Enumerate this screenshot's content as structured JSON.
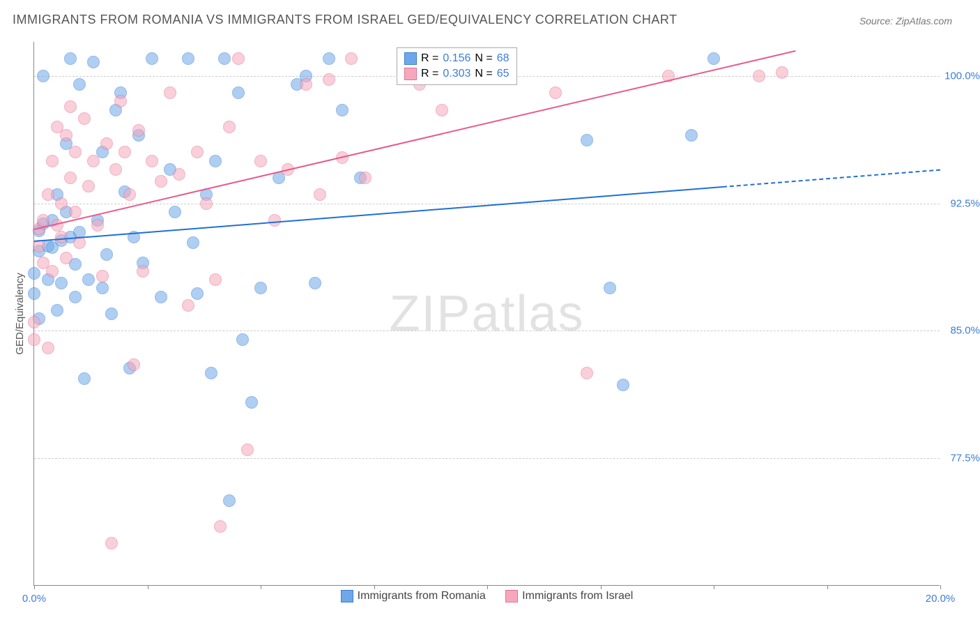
{
  "title": "IMMIGRANTS FROM ROMANIA VS IMMIGRANTS FROM ISRAEL GED/EQUIVALENCY CORRELATION CHART",
  "source": "Source: ZipAtlas.com",
  "ylabel": "GED/Equivalency",
  "watermark_bold": "ZIP",
  "watermark_light": "atlas",
  "chart": {
    "type": "scatter-correlation",
    "xlim": [
      0.0,
      20.0
    ],
    "ylim": [
      70.0,
      102.0
    ],
    "ytick_values": [
      77.5,
      85.0,
      92.5,
      100.0
    ],
    "ytick_labels": [
      "77.5%",
      "85.0%",
      "92.5%",
      "100.0%"
    ],
    "xtick_values": [
      0.0,
      2.5,
      5.0,
      7.5,
      10.0,
      12.5,
      15.0,
      17.5,
      20.0
    ],
    "xtick_labels": [
      "0.0%",
      "",
      "",
      "",
      "",
      "",
      "",
      "",
      "20.0%"
    ],
    "background_color": "#ffffff",
    "grid_color": "#cccccc",
    "axis_color": "#888888",
    "tick_label_color": "#3b7dd8",
    "marker_radius": 9,
    "marker_opacity": 0.55,
    "series": [
      {
        "name": "Immigrants from Romania",
        "color": "#6fa8e8",
        "border_color": "#3b7dd8",
        "trend_color": "#1f6fd6",
        "r": "0.156",
        "n": "68",
        "trend": {
          "x1": 0.0,
          "y1": 90.3,
          "x2": 15.2,
          "y2": 93.5,
          "dash_x2": 20.0,
          "dash_y2": 94.5
        },
        "points": [
          [
            0.0,
            87.2
          ],
          [
            0.0,
            88.4
          ],
          [
            0.1,
            89.7
          ],
          [
            0.1,
            85.7
          ],
          [
            0.1,
            90.9
          ],
          [
            0.2,
            100.0
          ],
          [
            0.2,
            91.3
          ],
          [
            0.3,
            90.0
          ],
          [
            0.3,
            88.0
          ],
          [
            0.4,
            89.9
          ],
          [
            0.4,
            91.5
          ],
          [
            0.5,
            86.2
          ],
          [
            0.5,
            93.0
          ],
          [
            0.6,
            90.3
          ],
          [
            0.6,
            87.8
          ],
          [
            0.7,
            92.0
          ],
          [
            0.7,
            96.0
          ],
          [
            0.8,
            101.0
          ],
          [
            0.8,
            90.5
          ],
          [
            0.9,
            88.9
          ],
          [
            0.9,
            87.0
          ],
          [
            1.0,
            99.5
          ],
          [
            1.0,
            90.8
          ],
          [
            1.1,
            82.2
          ],
          [
            1.2,
            88.0
          ],
          [
            1.3,
            100.8
          ],
          [
            1.4,
            91.5
          ],
          [
            1.5,
            87.5
          ],
          [
            1.5,
            95.5
          ],
          [
            1.6,
            89.5
          ],
          [
            1.7,
            86.0
          ],
          [
            1.8,
            98.0
          ],
          [
            1.9,
            99.0
          ],
          [
            2.0,
            93.2
          ],
          [
            2.1,
            82.8
          ],
          [
            2.2,
            90.5
          ],
          [
            2.3,
            96.5
          ],
          [
            2.4,
            89.0
          ],
          [
            2.6,
            101.0
          ],
          [
            2.8,
            87.0
          ],
          [
            3.0,
            94.5
          ],
          [
            3.1,
            92.0
          ],
          [
            3.4,
            101.0
          ],
          [
            3.5,
            90.2
          ],
          [
            3.6,
            87.2
          ],
          [
            3.8,
            93.0
          ],
          [
            3.9,
            82.5
          ],
          [
            4.0,
            95.0
          ],
          [
            4.2,
            101.0
          ],
          [
            4.3,
            75.0
          ],
          [
            4.5,
            99.0
          ],
          [
            4.6,
            84.5
          ],
          [
            4.8,
            80.8
          ],
          [
            5.0,
            87.5
          ],
          [
            5.4,
            94.0
          ],
          [
            5.8,
            99.5
          ],
          [
            6.0,
            100.0
          ],
          [
            6.2,
            87.8
          ],
          [
            6.5,
            101.0
          ],
          [
            6.8,
            98.0
          ],
          [
            7.2,
            94.0
          ],
          [
            9.8,
            100.5
          ],
          [
            10.5,
            100.8
          ],
          [
            12.2,
            96.2
          ],
          [
            12.7,
            87.5
          ],
          [
            13.0,
            81.8
          ],
          [
            14.5,
            96.5
          ],
          [
            15.0,
            101.0
          ]
        ]
      },
      {
        "name": "Immigrants from Israel",
        "color": "#f5a8bd",
        "border_color": "#e87095",
        "trend_color": "#e85a8a",
        "r": "0.303",
        "n": "65",
        "trend": {
          "x1": 0.0,
          "y1": 91.0,
          "x2": 16.8,
          "y2": 101.5
        },
        "points": [
          [
            0.0,
            84.5
          ],
          [
            0.0,
            85.5
          ],
          [
            0.1,
            91.0
          ],
          [
            0.1,
            90.0
          ],
          [
            0.2,
            89.0
          ],
          [
            0.2,
            91.5
          ],
          [
            0.3,
            84.0
          ],
          [
            0.3,
            93.0
          ],
          [
            0.4,
            88.5
          ],
          [
            0.4,
            95.0
          ],
          [
            0.5,
            91.2
          ],
          [
            0.5,
            97.0
          ],
          [
            0.6,
            90.5
          ],
          [
            0.6,
            92.5
          ],
          [
            0.7,
            89.3
          ],
          [
            0.7,
            96.5
          ],
          [
            0.8,
            94.0
          ],
          [
            0.8,
            98.2
          ],
          [
            0.9,
            95.5
          ],
          [
            0.9,
            92.0
          ],
          [
            1.0,
            90.2
          ],
          [
            1.1,
            97.5
          ],
          [
            1.2,
            93.5
          ],
          [
            1.3,
            95.0
          ],
          [
            1.4,
            91.2
          ],
          [
            1.5,
            88.2
          ],
          [
            1.6,
            96.0
          ],
          [
            1.7,
            72.5
          ],
          [
            1.8,
            94.5
          ],
          [
            1.9,
            98.5
          ],
          [
            2.0,
            95.5
          ],
          [
            2.1,
            93.0
          ],
          [
            2.2,
            83.0
          ],
          [
            2.3,
            96.8
          ],
          [
            2.4,
            88.5
          ],
          [
            2.6,
            95.0
          ],
          [
            2.8,
            93.8
          ],
          [
            3.0,
            99.0
          ],
          [
            3.2,
            94.2
          ],
          [
            3.4,
            86.5
          ],
          [
            3.6,
            95.5
          ],
          [
            3.8,
            92.5
          ],
          [
            4.0,
            88.0
          ],
          [
            4.1,
            73.5
          ],
          [
            4.3,
            97.0
          ],
          [
            4.5,
            101.0
          ],
          [
            4.7,
            78.0
          ],
          [
            5.0,
            95.0
          ],
          [
            5.3,
            91.5
          ],
          [
            5.6,
            94.5
          ],
          [
            6.0,
            99.5
          ],
          [
            6.3,
            93.0
          ],
          [
            6.5,
            99.8
          ],
          [
            6.8,
            95.2
          ],
          [
            7.0,
            101.0
          ],
          [
            7.3,
            94.0
          ],
          [
            8.5,
            99.5
          ],
          [
            9.0,
            98.0
          ],
          [
            10.0,
            100.5
          ],
          [
            10.5,
            100.8
          ],
          [
            11.5,
            99.0
          ],
          [
            12.2,
            82.5
          ],
          [
            14.0,
            100.0
          ],
          [
            16.0,
            100.0
          ],
          [
            16.5,
            100.2
          ]
        ]
      }
    ]
  },
  "legend_top_r_label": "R =",
  "legend_top_n_label": "N =",
  "legend_bottom": [
    "Immigrants from Romania",
    "Immigrants from Israel"
  ]
}
